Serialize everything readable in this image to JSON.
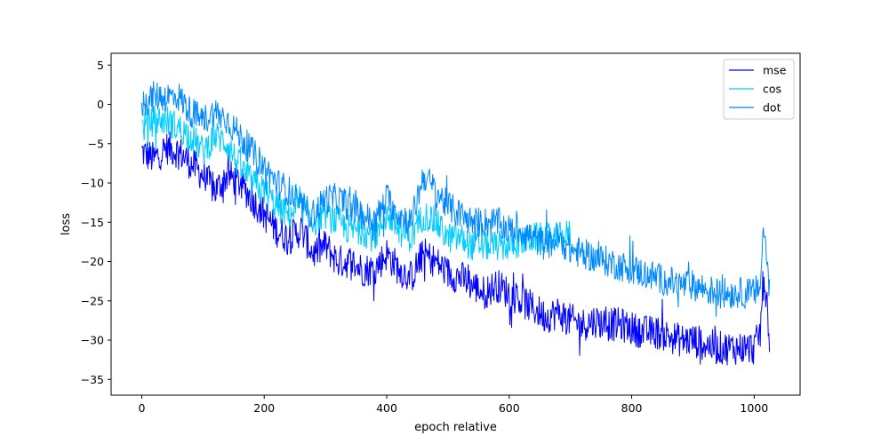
{
  "chart_data": {
    "type": "line",
    "xlabel": "epoch relative",
    "ylabel": "loss",
    "xlim": [
      -50,
      1075
    ],
    "ylim": [
      -37,
      6.5
    ],
    "xticks": [
      0,
      200,
      400,
      600,
      800,
      1000
    ],
    "yticks": [
      5,
      0,
      -5,
      -10,
      -15,
      -20,
      -25,
      -30,
      -35
    ],
    "grid": false,
    "legend": "top-right",
    "series": [
      {
        "name": "mse",
        "color": "#0000ff",
        "x": [
          0,
          20,
          40,
          60,
          80,
          100,
          120,
          140,
          160,
          180,
          200,
          220,
          240,
          260,
          280,
          300,
          320,
          340,
          360,
          380,
          400,
          420,
          440,
          460,
          480,
          500,
          520,
          540,
          560,
          580,
          600,
          620,
          640,
          660,
          680,
          700,
          720,
          740,
          760,
          780,
          800,
          820,
          840,
          860,
          880,
          900,
          920,
          940,
          960,
          980,
          1000,
          1010,
          1015,
          1020,
          1025
        ],
        "y": [
          -6,
          -7,
          -5.5,
          -6,
          -7.5,
          -9,
          -11,
          -9,
          -10,
          -12,
          -14,
          -16,
          -17,
          -16,
          -19,
          -18,
          -20,
          -20,
          -21,
          -21,
          -19,
          -21,
          -22,
          -19,
          -20,
          -21.5,
          -22,
          -23,
          -24,
          -23,
          -24,
          -25,
          -26,
          -27,
          -26.5,
          -27.5,
          -28,
          -27.5,
          -28,
          -28,
          -28.5,
          -29,
          -29,
          -29.5,
          -30,
          -30,
          -30.5,
          -31,
          -31,
          -31,
          -31,
          -29,
          -22,
          -24,
          -30
        ]
      },
      {
        "name": "cos",
        "color": "#00ccff",
        "x": [
          0,
          20,
          40,
          60,
          80,
          100,
          120,
          140,
          160,
          180,
          200,
          220,
          240,
          260,
          280,
          300,
          320,
          340,
          360,
          380,
          400,
          420,
          440,
          460,
          480,
          500,
          520,
          540,
          560,
          580,
          600,
          620,
          640,
          660,
          680,
          700
        ],
        "y": [
          -3,
          -2,
          -2,
          -3,
          -4,
          -6,
          -4,
          -5,
          -8,
          -10,
          -11,
          -13,
          -14,
          -13,
          -15,
          -14,
          -15,
          -16,
          -16,
          -17,
          -14,
          -16,
          -17,
          -14,
          -15,
          -17,
          -17,
          -18,
          -18,
          -18,
          -18,
          -17.5,
          -17,
          -17,
          -17,
          -16.5
        ]
      },
      {
        "name": "dot",
        "color": "#0088ff",
        "x": [
          0,
          20,
          40,
          60,
          80,
          100,
          120,
          140,
          160,
          180,
          200,
          220,
          240,
          260,
          280,
          300,
          320,
          340,
          360,
          380,
          400,
          420,
          440,
          460,
          480,
          500,
          520,
          540,
          560,
          580,
          600,
          620,
          640,
          660,
          680,
          700,
          720,
          740,
          760,
          780,
          800,
          820,
          840,
          860,
          880,
          900,
          920,
          940,
          960,
          980,
          1000,
          1010,
          1015,
          1020,
          1025
        ],
        "y": [
          0,
          1,
          1,
          1,
          -1,
          -2,
          -1,
          -2,
          -4,
          -6,
          -8,
          -10,
          -11,
          -13,
          -14,
          -12,
          -12,
          -13,
          -14,
          -15,
          -12,
          -14,
          -15,
          -9,
          -11,
          -13,
          -14,
          -15,
          -15,
          -15,
          -16,
          -16,
          -17,
          -18,
          -17,
          -18.5,
          -19,
          -19.5,
          -20,
          -20.5,
          -21,
          -21.5,
          -22,
          -22.5,
          -23,
          -23,
          -23.5,
          -24,
          -24,
          -24,
          -24,
          -23,
          -16,
          -18,
          -24
        ]
      }
    ]
  }
}
